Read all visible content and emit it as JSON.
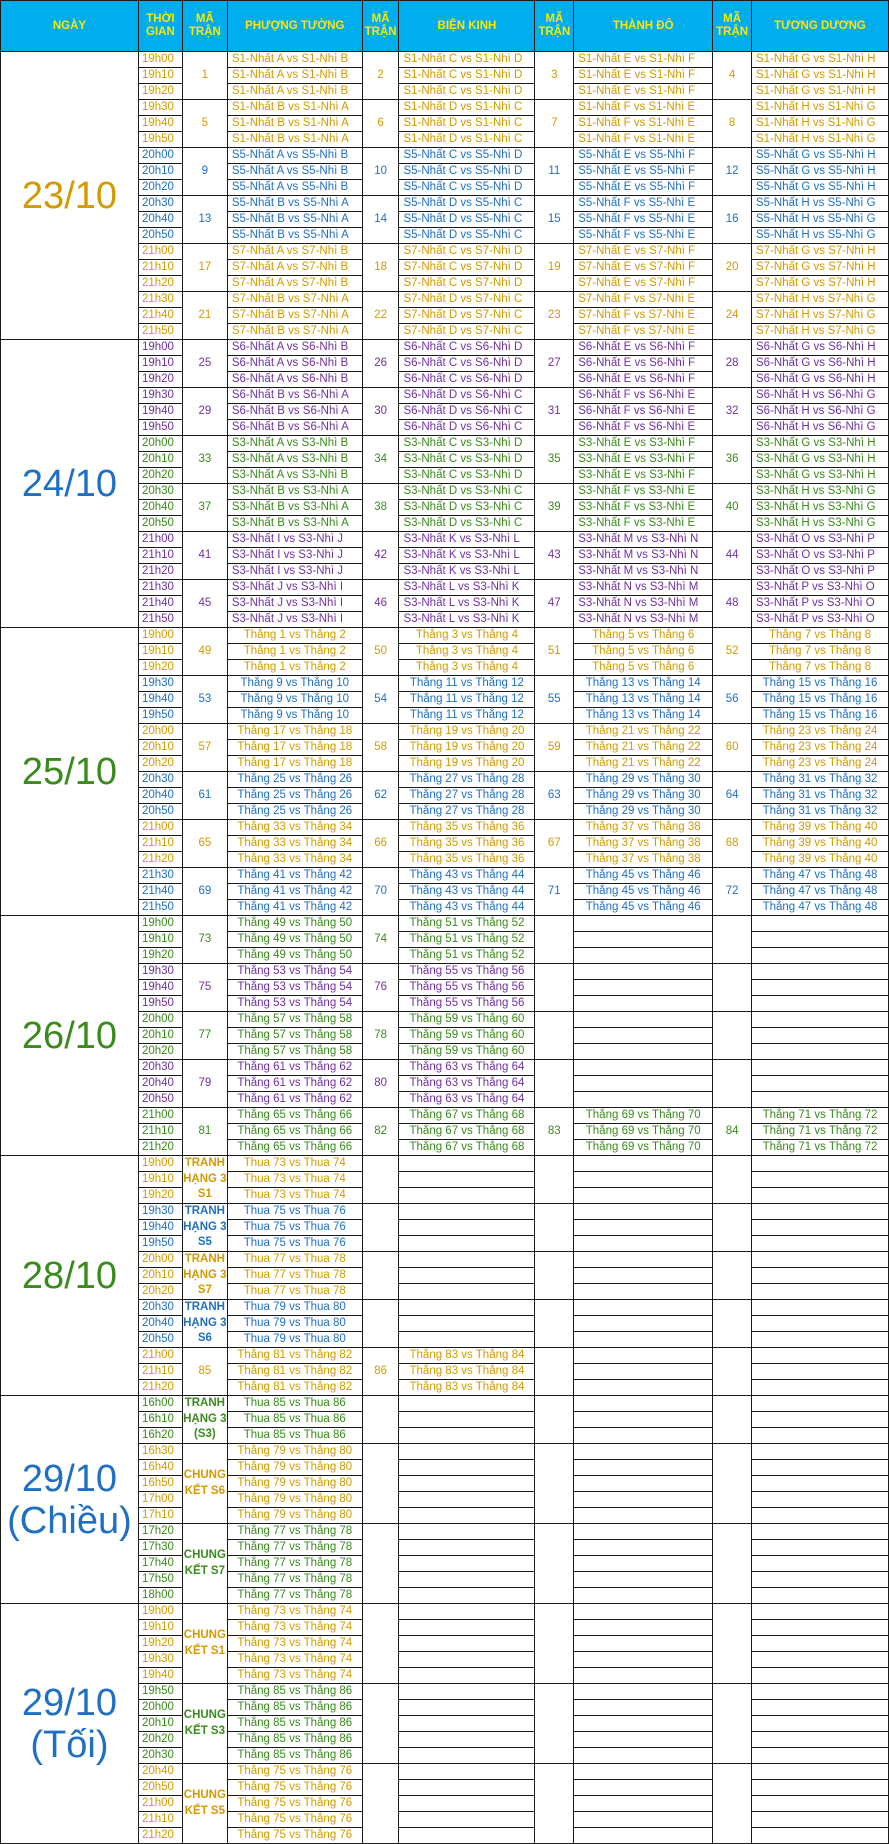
{
  "colors": {
    "header_bg": "#00aeef",
    "header_text": "#ffe600",
    "yellow": "#d29a00",
    "green": "#3a8a1c",
    "purple": "#7030a0",
    "blue": "#1f6fc4"
  },
  "headers": [
    "NGÀY",
    "THỜI GIAN",
    "MÃ TRẬN",
    "PHƯỢNG TƯỜNG",
    "MÃ TRẬN",
    "BIỆN KINH",
    "MÃ TRẬN",
    "THÀNH ĐÔ",
    "MÃ TRẬN",
    "TƯƠNG DƯƠNG"
  ],
  "days": [
    {
      "label": "23/10",
      "color": "yellow",
      "groups": [
        {
          "times": [
            "19h00",
            "19h10",
            "19h20"
          ],
          "color": "yellow",
          "cells": [
            [
              "1",
              "S1-Nhất A vs S1-Nhì B"
            ],
            [
              "2",
              "S1-Nhất C vs S1-Nhì D"
            ],
            [
              "3",
              "S1-Nhất E vs S1-Nhì F"
            ],
            [
              "4",
              "S1-Nhất G vs S1-Nhì H"
            ]
          ]
        },
        {
          "times": [
            "19h30",
            "19h40",
            "19h50"
          ],
          "color": "yellow",
          "cells": [
            [
              "5",
              "S1-Nhất B vs S1-Nhì A"
            ],
            [
              "6",
              "S1-Nhất D vs S1-Nhì C"
            ],
            [
              "7",
              "S1-Nhất F vs S1-Nhì E"
            ],
            [
              "8",
              "S1-Nhất H vs S1-Nhì G"
            ]
          ]
        },
        {
          "times": [
            "20h00",
            "20h10",
            "20h20"
          ],
          "color": "blue",
          "cells": [
            [
              "9",
              "S5-Nhất A vs S5-Nhì B"
            ],
            [
              "10",
              "S5-Nhất C vs S5-Nhì D"
            ],
            [
              "11",
              "S5-Nhất E vs S5-Nhì F"
            ],
            [
              "12",
              "S5-Nhất G vs S5-Nhì H"
            ]
          ]
        },
        {
          "times": [
            "20h30",
            "20h40",
            "20h50"
          ],
          "color": "blue",
          "cells": [
            [
              "13",
              "S5-Nhất B vs S5-Nhì A"
            ],
            [
              "14",
              "S5-Nhất D vs S5-Nhì C"
            ],
            [
              "15",
              "S5-Nhất F vs S5-Nhì E"
            ],
            [
              "16",
              "S5-Nhất H vs S5-Nhì G"
            ]
          ]
        },
        {
          "times": [
            "21h00",
            "21h10",
            "21h20"
          ],
          "color": "yellow",
          "cells": [
            [
              "17",
              "S7-Nhất A vs S7-Nhì B"
            ],
            [
              "18",
              "S7-Nhất C vs S7-Nhì D"
            ],
            [
              "19",
              "S7-Nhất E vs S7-Nhì F"
            ],
            [
              "20",
              "S7-Nhất G vs S7-Nhì H"
            ]
          ]
        },
        {
          "times": [
            "21h30",
            "21h40",
            "21h50"
          ],
          "color": "yellow",
          "cells": [
            [
              "21",
              "S7-Nhất B vs S7-Nhì A"
            ],
            [
              "22",
              "S7-Nhất D vs S7-Nhì C"
            ],
            [
              "23",
              "S7-Nhất F vs S7-Nhì E"
            ],
            [
              "24",
              "S7-Nhất H vs S7-Nhì G"
            ]
          ]
        }
      ]
    },
    {
      "label": "24/10",
      "color": "blue",
      "groups": [
        {
          "times": [
            "19h00",
            "19h10",
            "19h20"
          ],
          "color": "purple",
          "cells": [
            [
              "25",
              "S6-Nhất A vs S6-Nhì B"
            ],
            [
              "26",
              "S6-Nhất C vs S6-Nhì D"
            ],
            [
              "27",
              "S6-Nhất E vs S6-Nhì F"
            ],
            [
              "28",
              "S6-Nhất G vs S6-Nhì H"
            ]
          ]
        },
        {
          "times": [
            "19h30",
            "19h40",
            "19h50"
          ],
          "color": "purple",
          "cells": [
            [
              "29",
              "S6-Nhất B vs S6-Nhì A"
            ],
            [
              "30",
              "S6-Nhất D vs S6-Nhì C"
            ],
            [
              "31",
              "S6-Nhất F vs S6-Nhì E"
            ],
            [
              "32",
              "S6-Nhất H vs S6-Nhì G"
            ]
          ]
        },
        {
          "times": [
            "20h00",
            "20h10",
            "20h20"
          ],
          "color": "green",
          "cells": [
            [
              "33",
              "S3-Nhất A vs S3-Nhì B"
            ],
            [
              "34",
              "S3-Nhất C vs S3-Nhì D"
            ],
            [
              "35",
              "S3-Nhất E vs S3-Nhì F"
            ],
            [
              "36",
              "S3-Nhất G vs S3-Nhì H"
            ]
          ]
        },
        {
          "times": [
            "20h30",
            "20h40",
            "20h50"
          ],
          "color": "green",
          "cells": [
            [
              "37",
              "S3-Nhất B vs S3-Nhì A"
            ],
            [
              "38",
              "S3-Nhất D vs S3-Nhì C"
            ],
            [
              "39",
              "S3-Nhất F vs S3-Nhì E"
            ],
            [
              "40",
              "S3-Nhất H vs S3-Nhì G"
            ]
          ]
        },
        {
          "times": [
            "21h00",
            "21h10",
            "21h20"
          ],
          "color": "purple",
          "cells": [
            [
              "41",
              "S3-Nhất I vs S3-Nhì J"
            ],
            [
              "42",
              "S3-Nhất K vs S3-Nhì L"
            ],
            [
              "43",
              "S3-Nhất M vs S3-Nhì N"
            ],
            [
              "44",
              "S3-Nhất O vs S3-Nhì P"
            ]
          ]
        },
        {
          "times": [
            "21h30",
            "21h40",
            "21h50"
          ],
          "color": "purple",
          "cells": [
            [
              "45",
              "S3-Nhất J vs S3-Nhì I"
            ],
            [
              "46",
              "S3-Nhất L vs S3-Nhì K"
            ],
            [
              "47",
              "S3-Nhất N vs S3-Nhì M"
            ],
            [
              "48",
              "S3-Nhất P vs S3-Nhì O"
            ]
          ]
        }
      ]
    },
    {
      "label": "25/10",
      "color": "green",
      "groups": [
        {
          "times": [
            "19h00",
            "19h10",
            "19h20"
          ],
          "color": "yellow",
          "cells": [
            [
              "49",
              "Thắng 1 vs Thắng 2"
            ],
            [
              "50",
              "Thắng 3 vs Thắng 4"
            ],
            [
              "51",
              "Thắng 5 vs Thắng 6"
            ],
            [
              "52",
              "Thắng 7 vs Thắng 8"
            ]
          ]
        },
        {
          "times": [
            "19h30",
            "19h40",
            "19h50"
          ],
          "color": "blue",
          "cells": [
            [
              "53",
              "Thắng 9 vs Thắng 10"
            ],
            [
              "54",
              "Thắng 11 vs Thắng 12"
            ],
            [
              "55",
              "Thắng 13 vs Thắng 14"
            ],
            [
              "56",
              "Thắng 15 vs Thắng 16"
            ]
          ]
        },
        {
          "times": [
            "20h00",
            "20h10",
            "20h20"
          ],
          "color": "yellow",
          "cells": [
            [
              "57",
              "Thắng 17 vs Thắng 18"
            ],
            [
              "58",
              "Thắng 19 vs Thắng 20"
            ],
            [
              "59",
              "Thắng 21 vs Thắng 22"
            ],
            [
              "60",
              "Thắng 23 vs Thắng 24"
            ]
          ]
        },
        {
          "times": [
            "20h30",
            "20h40",
            "20h50"
          ],
          "color": "blue",
          "cells": [
            [
              "61",
              "Thắng 25 vs Thắng 26"
            ],
            [
              "62",
              "Thắng 27 vs Thắng 28"
            ],
            [
              "63",
              "Thắng 29 vs Thắng 30"
            ],
            [
              "64",
              "Thắng 31 vs Thắng 32"
            ]
          ]
        },
        {
          "times": [
            "21h00",
            "21h10",
            "21h20"
          ],
          "color": "yellow",
          "cells": [
            [
              "65",
              "Thắng 33 vs Thắng 34"
            ],
            [
              "66",
              "Thắng 35 vs Thắng 36"
            ],
            [
              "67",
              "Thắng 37 vs Thắng 38"
            ],
            [
              "68",
              "Thắng 39 vs Thắng 40"
            ]
          ]
        },
        {
          "times": [
            "21h30",
            "21h40",
            "21h50"
          ],
          "color": "blue",
          "cells": [
            [
              "69",
              "Thắng 41 vs Thắng 42"
            ],
            [
              "70",
              "Thắng 43 vs Thắng 44"
            ],
            [
              "71",
              "Thắng 45 vs Thắng 46"
            ],
            [
              "72",
              "Thắng 47 vs Thắng 48"
            ]
          ]
        }
      ]
    },
    {
      "label": "26/10",
      "color": "green",
      "groups": [
        {
          "times": [
            "19h00",
            "19h10",
            "19h20"
          ],
          "color": "green",
          "cells": [
            [
              "73",
              "Thắng 49 vs Thắng 50"
            ],
            [
              "74",
              "Thắng 51 vs Thắng 52"
            ],
            null,
            null
          ]
        },
        {
          "times": [
            "19h30",
            "19h40",
            "19h50"
          ],
          "color": "purple",
          "cells": [
            [
              "75",
              "Thắng 53 vs Thắng 54"
            ],
            [
              "76",
              "Thắng 55 vs Thắng 56"
            ],
            null,
            null
          ]
        },
        {
          "times": [
            "20h00",
            "20h10",
            "20h20"
          ],
          "color": "green",
          "cells": [
            [
              "77",
              "Thắng 57 vs Thắng 58"
            ],
            [
              "78",
              "Thắng 59 vs Thắng 60"
            ],
            null,
            null
          ]
        },
        {
          "times": [
            "20h30",
            "20h40",
            "20h50"
          ],
          "color": "purple",
          "cells": [
            [
              "79",
              "Thắng 61 vs Thắng 62"
            ],
            [
              "80",
              "Thắng 63 vs Thắng 64"
            ],
            null,
            null
          ]
        },
        {
          "times": [
            "21h00",
            "21h10",
            "21h20"
          ],
          "color": "green",
          "cells": [
            [
              "81",
              "Thắng 65 vs Thắng 66"
            ],
            [
              "82",
              "Thắng 67 vs Thắng 68"
            ],
            [
              "83",
              "Thắng 69 vs Thắng 70"
            ],
            [
              "84",
              "Thắng 71 vs Thắng 72"
            ]
          ]
        }
      ]
    },
    {
      "label": "28/10",
      "color": "green",
      "groups": [
        {
          "times": [
            "19h00",
            "19h10",
            "19h20"
          ],
          "color": "yellow",
          "bold": true,
          "cells": [
            [
              "TRANH HẠNG 3 S1",
              "Thua 73 vs Thua 74"
            ],
            null,
            null,
            null
          ]
        },
        {
          "times": [
            "19h30",
            "19h40",
            "19h50"
          ],
          "color": "blue",
          "bold": true,
          "cells": [
            [
              "TRANH HẠNG 3 S5",
              "Thua 75 vs Thua 76"
            ],
            null,
            null,
            null
          ]
        },
        {
          "times": [
            "20h00",
            "20h10",
            "20h20"
          ],
          "color": "yellow",
          "bold": true,
          "cells": [
            [
              "TRANH HẠNG 3 S7",
              "Thua 77 vs Thua 78"
            ],
            null,
            null,
            null
          ]
        },
        {
          "times": [
            "20h30",
            "20h40",
            "20h50"
          ],
          "color": "blue",
          "bold": true,
          "cells": [
            [
              "TRANH HẠNG 3 S6",
              "Thua 79 vs Thua 80"
            ],
            null,
            null,
            null
          ]
        },
        {
          "times": [
            "21h00",
            "21h10",
            "21h20"
          ],
          "color": "yellow",
          "cells": [
            [
              "85",
              "Thắng 81 vs Thắng 82"
            ],
            [
              "86",
              "Thắng 83 vs Thắng 84"
            ],
            null,
            null
          ]
        }
      ]
    },
    {
      "label": "29/10 (Chiều)",
      "color": "blue",
      "groups": [
        {
          "times": [
            "16h00",
            "16h10",
            "16h20"
          ],
          "color": "green",
          "bold": true,
          "cells": [
            [
              "TRANH HẠNG 3 (S3)",
              "Thua 85 vs Thua 86"
            ],
            null,
            null,
            null
          ]
        },
        {
          "times": [
            "16h30",
            "16h40",
            "16h50",
            "17h00",
            "17h10"
          ],
          "color": "yellow",
          "bold": true,
          "cells": [
            [
              "CHUNG KẾT S6",
              "Thắng 79 vs Thắng 80"
            ],
            null,
            null,
            null
          ]
        },
        {
          "times": [
            "17h20",
            "17h30",
            "17h40",
            "17h50",
            "18h00"
          ],
          "color": "green",
          "bold": true,
          "cells": [
            [
              "CHUNG KẾT S7",
              "Thắng 77 vs Thắng 78"
            ],
            null,
            null,
            null
          ]
        }
      ]
    },
    {
      "label": "29/10 (Tối)",
      "color": "blue",
      "groups": [
        {
          "times": [
            "19h00",
            "19h10",
            "19h20",
            "19h30",
            "19h40"
          ],
          "color": "yellow",
          "bold": true,
          "cells": [
            [
              "CHUNG KẾT S1",
              "Thắng 73 vs Thắng 74"
            ],
            null,
            null,
            null
          ]
        },
        {
          "times": [
            "19h50",
            "20h00",
            "20h10",
            "20h20",
            "20h30"
          ],
          "color": "green",
          "bold": true,
          "cells": [
            [
              "CHUNG KẾT S3",
              "Thắng 85 vs Thắng 86"
            ],
            null,
            null,
            null
          ]
        },
        {
          "times": [
            "20h40",
            "20h50",
            "21h00",
            "21h10",
            "21h20"
          ],
          "color": "yellow",
          "bold": true,
          "cells": [
            [
              "CHUNG KẾT S5",
              "Thắng 75 vs Thắng 76"
            ],
            null,
            null,
            null
          ]
        }
      ]
    }
  ]
}
